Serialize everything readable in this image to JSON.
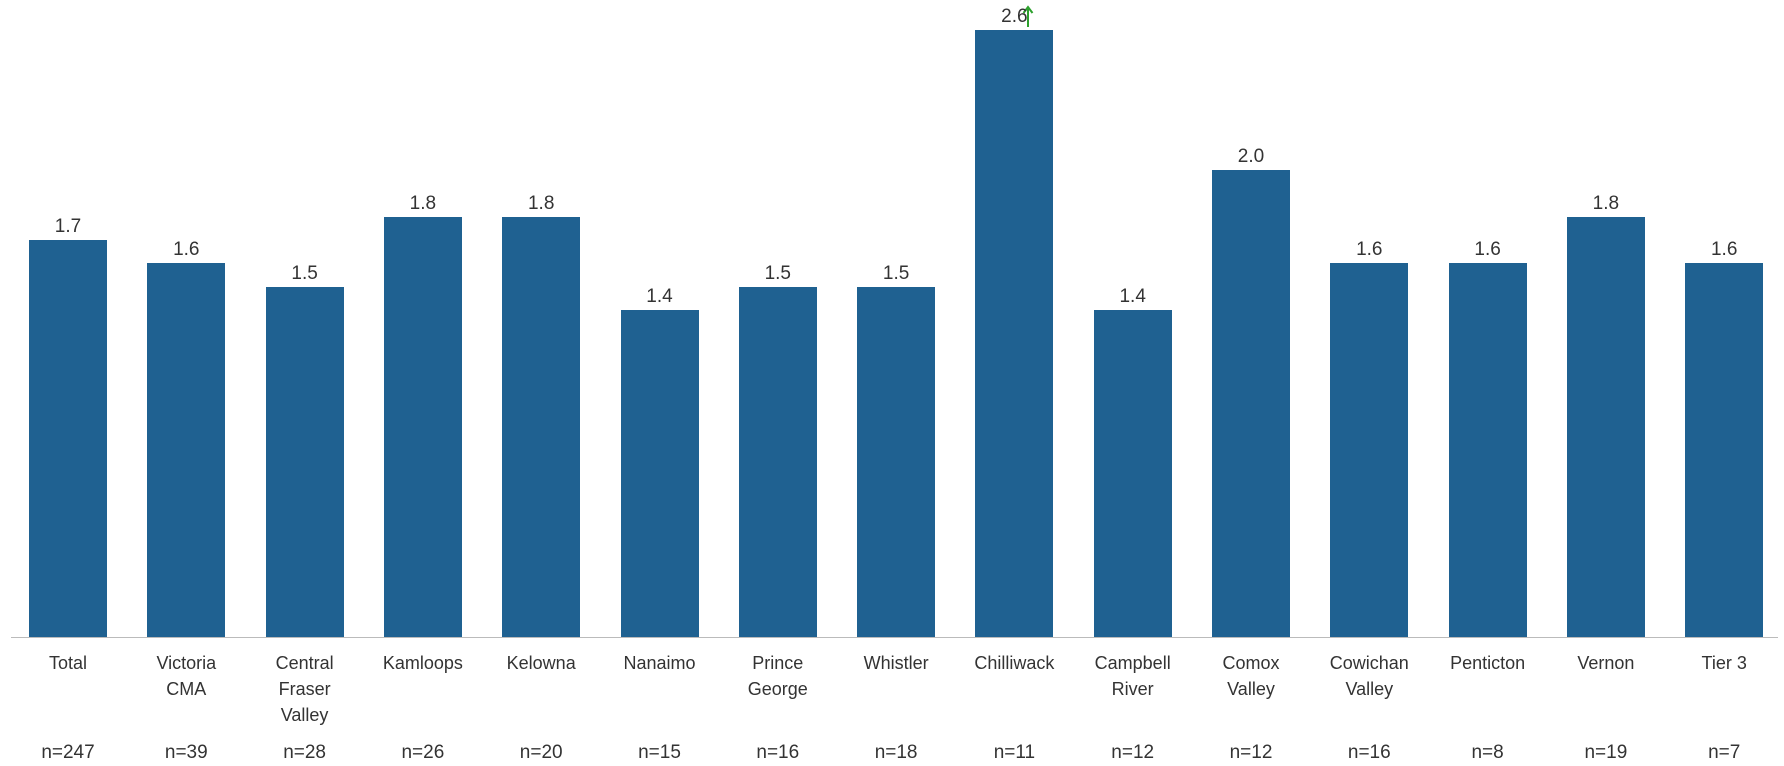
{
  "chart_data": {
    "type": "bar",
    "categories": [
      "Total",
      "Victoria\nCMA",
      "Central\nFraser\nValley",
      "Kamloops",
      "Kelowna",
      "Nanaimo",
      "Prince\nGeorge",
      "Whistler",
      "Chilliwack",
      "Campbell\nRiver",
      "Comox\nValley",
      "Cowichan\nValley",
      "Penticton",
      "Vernon",
      "Tier 3"
    ],
    "values": [
      1.7,
      1.6,
      1.5,
      1.8,
      1.8,
      1.4,
      1.5,
      1.5,
      2.6,
      1.4,
      2.0,
      1.6,
      1.6,
      1.8,
      1.6
    ],
    "value_labels": [
      "1.7",
      "1.6",
      "1.5",
      "1.8",
      "1.8",
      "1.4",
      "1.5",
      "1.5",
      "2.6",
      "1.4",
      "2.0",
      "1.6",
      "1.6",
      "1.8",
      "1.6"
    ],
    "sample_sizes": [
      "n=247",
      "n=39",
      "n=28",
      "n=26",
      "n=20",
      "n=15",
      "n=16",
      "n=18",
      "n=11",
      "n=12",
      "n=12",
      "n=16",
      "n=8",
      "n=19",
      "n=7"
    ],
    "color": "#1f6191"
  }
}
